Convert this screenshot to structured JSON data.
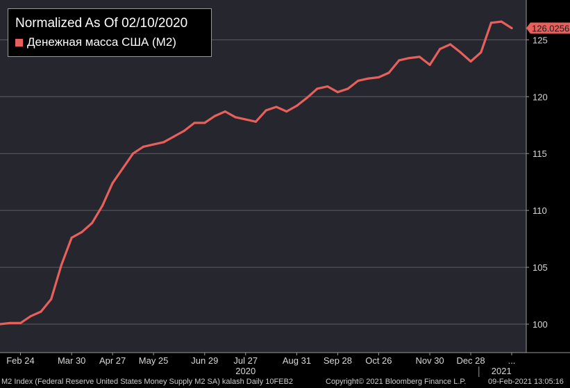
{
  "chart_data": {
    "type": "line",
    "title": "Normalized As Of 02/10/2020",
    "series": [
      {
        "name": "Денежная масса США (M2)",
        "color": "#e8605c",
        "x": [
          "2020-02-10",
          "2020-02-17",
          "2020-02-24",
          "2020-03-02",
          "2020-03-09",
          "2020-03-16",
          "2020-03-23",
          "2020-03-30",
          "2020-04-06",
          "2020-04-13",
          "2020-04-20",
          "2020-04-27",
          "2020-05-04",
          "2020-05-11",
          "2020-05-18",
          "2020-05-25",
          "2020-06-01",
          "2020-06-08",
          "2020-06-15",
          "2020-06-22",
          "2020-06-29",
          "2020-07-06",
          "2020-07-13",
          "2020-07-20",
          "2020-07-27",
          "2020-08-03",
          "2020-08-10",
          "2020-08-17",
          "2020-08-24",
          "2020-08-31",
          "2020-09-07",
          "2020-09-14",
          "2020-09-21",
          "2020-09-28",
          "2020-10-05",
          "2020-10-12",
          "2020-10-19",
          "2020-10-26",
          "2020-11-02",
          "2020-11-09",
          "2020-11-16",
          "2020-11-23",
          "2020-11-30",
          "2020-12-07",
          "2020-12-14",
          "2020-12-21",
          "2020-12-28",
          "2021-01-04",
          "2021-01-11",
          "2021-01-18",
          "2021-01-25"
        ],
        "values": [
          100.0,
          100.1,
          100.1,
          100.7,
          101.1,
          102.2,
          105.2,
          107.6,
          108.1,
          108.9,
          110.4,
          112.4,
          113.7,
          115.0,
          115.6,
          115.8,
          116.0,
          116.5,
          117.0,
          117.7,
          117.7,
          118.3,
          118.7,
          118.2,
          118.0,
          117.8,
          118.8,
          119.1,
          118.7,
          119.2,
          119.9,
          120.7,
          120.9,
          120.4,
          120.7,
          121.4,
          121.6,
          121.7,
          122.1,
          123.2,
          123.4,
          123.5,
          122.8,
          124.2,
          124.6,
          123.9,
          123.1,
          123.9,
          126.5,
          126.6,
          126.0256
        ]
      }
    ],
    "last_value_label": "126.0256",
    "ylim": [
      97.5,
      128.5
    ],
    "y_ticks": [
      100,
      105,
      110,
      115,
      120,
      125
    ],
    "x_ticks": [
      {
        "date": "2020-02-24",
        "label": "Feb 24"
      },
      {
        "date": "2020-03-30",
        "label": "Mar 30"
      },
      {
        "date": "2020-04-27",
        "label": "Apr 27"
      },
      {
        "date": "2020-05-25",
        "label": "May 25"
      },
      {
        "date": "2020-06-29",
        "label": "Jun 29"
      },
      {
        "date": "2020-07-27",
        "label": "Jul 27"
      },
      {
        "date": "2020-08-31",
        "label": "Aug 31"
      },
      {
        "date": "2020-09-28",
        "label": "Sep 28"
      },
      {
        "date": "2020-10-26",
        "label": "Oct 26"
      },
      {
        "date": "2020-11-30",
        "label": "Nov 30"
      },
      {
        "date": "2020-12-28",
        "label": "Dec 28"
      },
      {
        "date": "2021-01-25",
        "label": "..."
      }
    ],
    "year_labels": [
      {
        "date": "2020-07-27",
        "label": "2020"
      },
      {
        "date": "2021-01-18",
        "label": "2021"
      }
    ],
    "grid": true,
    "legend_position": "top-left"
  },
  "footer": {
    "left": "M2 Index (Federal Reserve United States Money Supply M2 SA) kalash  Daily 10FEB2",
    "copyright": "Copyright© 2021 Bloomberg Finance L.P.",
    "timestamp": "09-Feb-2021 13:05:16"
  },
  "colors": {
    "plot_background": "#25262e",
    "grid": "#5e5f66",
    "line": "#e8605c",
    "axis_text": "#d8d8d8"
  }
}
